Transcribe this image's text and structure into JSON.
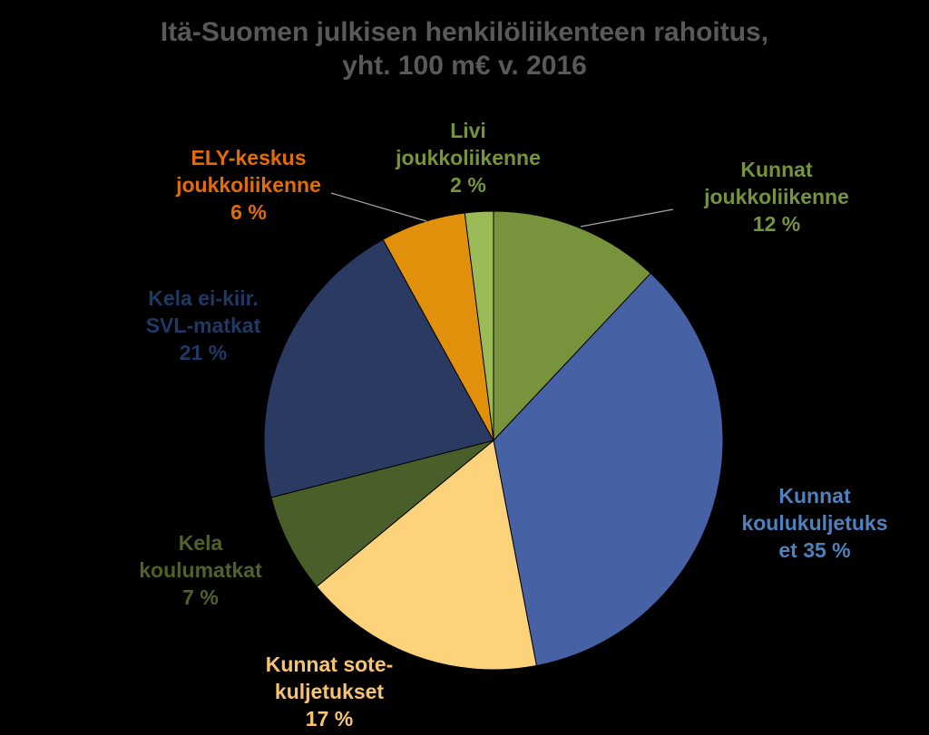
{
  "chart_data": {
    "type": "pie",
    "title": [
      "Itä-Suomen julkisen henkilöliikenteen rahoitus,",
      "yht. 100 m€ v. 2016"
    ],
    "start_angle_deg": 0,
    "direction": "clockwise",
    "slices": [
      {
        "name": "Kunnat joukkoliikenne",
        "value": 12,
        "color": "#77933C",
        "label_lines": [
          "Kunnat",
          "joukkoliikenne",
          "12 %"
        ],
        "label_color": "#77933C",
        "leader_line": true
      },
      {
        "name": "Kunnat koulukuljetukset",
        "value": 35,
        "color": "#4662A5",
        "label_lines": [
          "Kunnat",
          "koulukuljetuks",
          "et 35 %"
        ],
        "label_color": "#4F81BD",
        "leader_line": false
      },
      {
        "name": "Kunnat sotekuljetukset",
        "value": 17,
        "color": "#FCD27A",
        "label_lines": [
          "Kunnat sote-",
          "kuljetukset",
          "17 %"
        ],
        "label_color": "#F9C46E",
        "leader_line": false
      },
      {
        "name": "Kela koulumatkat",
        "value": 7,
        "color": "#4A5E2A",
        "label_lines": [
          "Kela",
          "koulumatkat",
          "7 %"
        ],
        "label_color": "#4F6228",
        "leader_line": false
      },
      {
        "name": "Kela ei-kiir. SVL-matkat",
        "value": 21,
        "color": "#2A3A63",
        "label_lines": [
          "Kela ei-kiir.",
          "SVL-matkat",
          "21 %"
        ],
        "label_color": "#1F3864",
        "leader_line": false
      },
      {
        "name": "ELY-keskus joukkoliikenne",
        "value": 6,
        "color": "#E1900B",
        "label_lines": [
          "ELY-keskus",
          "joukkoliikenne",
          "6 %"
        ],
        "label_color": "#E36C09",
        "leader_line": true
      },
      {
        "name": "Livi joukkoliikenne",
        "value": 2,
        "color": "#9BBB59",
        "label_lines": [
          "Livi",
          "joukkoliikenne",
          "2 %"
        ],
        "label_color": "#77933C",
        "leader_line": true
      }
    ]
  }
}
